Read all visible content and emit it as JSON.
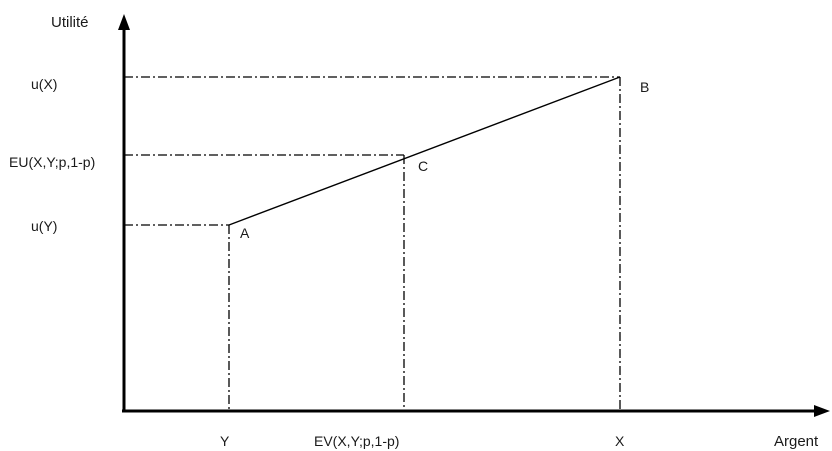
{
  "axes": {
    "y_title": "Utilité",
    "x_title": "Argent"
  },
  "y_labels": {
    "uX": "u(X)",
    "eu": "EU(X,Y;p,1-p)",
    "uY": "u(Y)"
  },
  "x_labels": {
    "Y": "Y",
    "ev": "EV(X,Y;p,1-p)",
    "X": "X"
  },
  "points": {
    "A": "A",
    "B": "B",
    "C": "C"
  }
}
